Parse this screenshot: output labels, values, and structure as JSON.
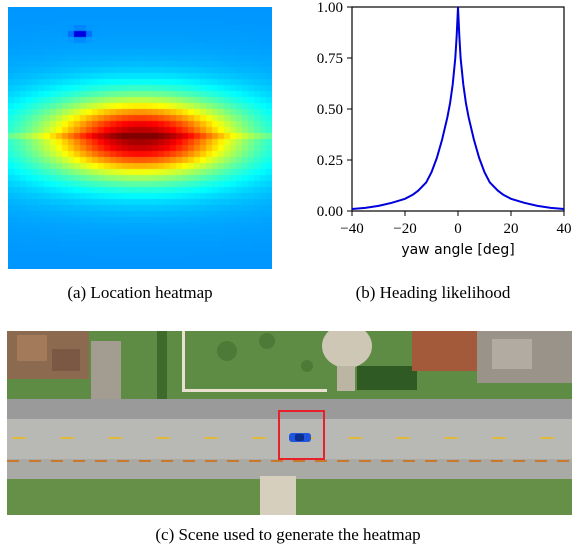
{
  "figure": {
    "panel_a": {
      "caption": "(a) Location heatmap"
    },
    "panel_b": {
      "caption": "(b) Heading likelihood"
    },
    "panel_c": {
      "caption": "(c) Scene used to generate the heatmap"
    }
  },
  "colors": {
    "curve": "#0000dd",
    "highlight_box": "#e8202a",
    "vehicle": "#2255dd"
  },
  "chart_data": {
    "type": "line",
    "title": "",
    "xlabel": "yaw angle [deg]",
    "ylabel": "",
    "xlim": [
      -40,
      40
    ],
    "ylim": [
      0,
      1.0
    ],
    "x_ticks": [
      -40,
      -20,
      0,
      20,
      40
    ],
    "x_tick_labels": [
      "−40",
      "−20",
      "0",
      "20",
      "40"
    ],
    "y_ticks": [
      0.0,
      0.25,
      0.5,
      0.75,
      1.0
    ],
    "y_tick_labels": [
      "0.00",
      "0.25",
      "0.50",
      "0.75",
      "1.00"
    ],
    "grid": false,
    "series": [
      {
        "x": [
          -40,
          -35,
          -30,
          -25,
          -20,
          -17,
          -15,
          -12,
          -10,
          -8,
          -6,
          -4,
          -3,
          -2,
          -1,
          -0.5,
          0,
          0.5,
          1,
          2,
          3,
          4,
          6,
          8,
          10,
          12,
          15,
          17,
          20,
          25,
          30,
          35,
          40
        ],
        "values": [
          0.01,
          0.015,
          0.025,
          0.04,
          0.06,
          0.08,
          0.1,
          0.14,
          0.19,
          0.26,
          0.35,
          0.46,
          0.53,
          0.62,
          0.75,
          0.86,
          1.0,
          0.86,
          0.75,
          0.62,
          0.53,
          0.46,
          0.35,
          0.26,
          0.19,
          0.14,
          0.1,
          0.08,
          0.06,
          0.04,
          0.025,
          0.015,
          0.01
        ]
      }
    ]
  }
}
